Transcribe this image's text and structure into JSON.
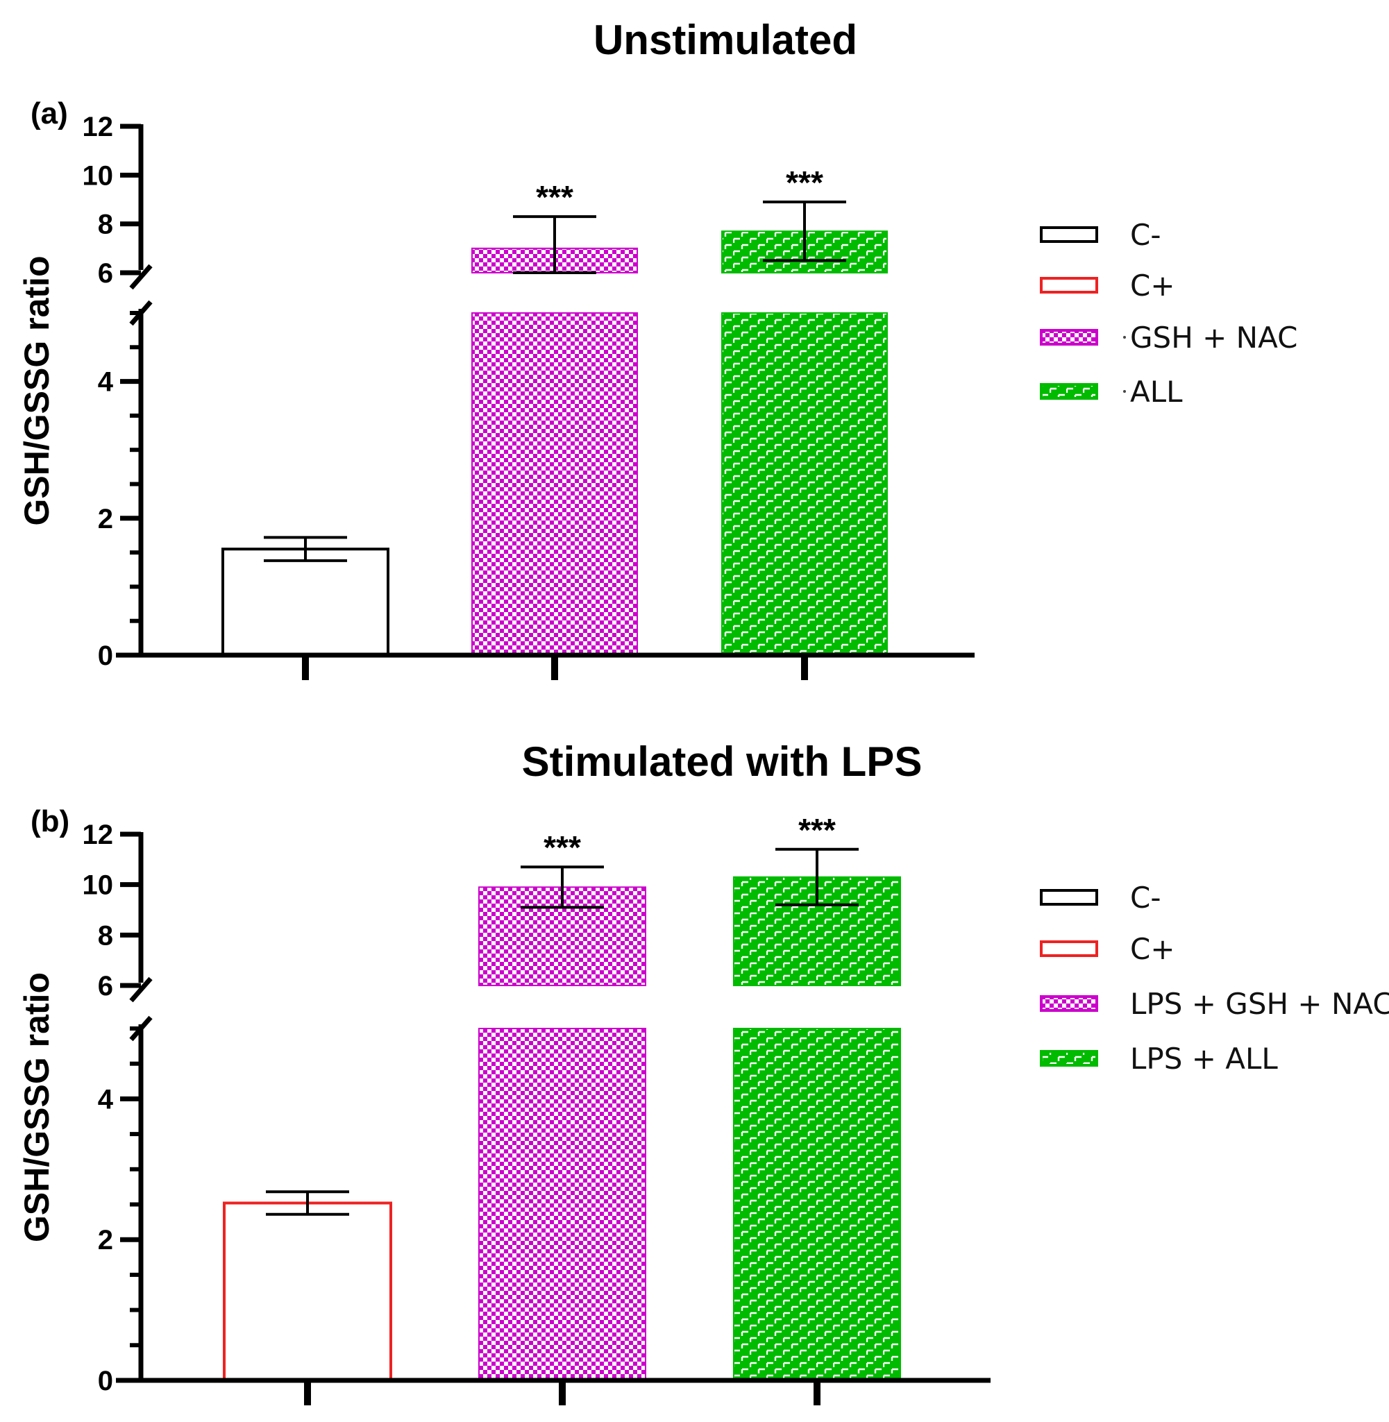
{
  "colors": {
    "c_minus": "#000000",
    "c_plus": "#ee2222",
    "gsh_nac": "#cc00cc",
    "all": "#00bb00"
  },
  "chart_data": [
    {
      "type": "bar",
      "panel_label": "(a)",
      "title": "Unstimulated",
      "ylabel": "GSH/GSSG ratio",
      "xlabel": "",
      "ylim": [
        0,
        12
      ],
      "axis_break": [
        5,
        6
      ],
      "yticks": [
        0,
        2,
        4,
        6,
        8,
        10,
        12
      ],
      "series": [
        {
          "name": "C-",
          "value": 1.55,
          "err": 0.17,
          "sig": "",
          "color_key": "c_minus",
          "pattern": "none"
        },
        {
          "name": "GSH + NAC",
          "value": 7.0,
          "err": 1.3,
          "sig": "***",
          "color_key": "gsh_nac",
          "pattern": "checker"
        },
        {
          "name": "ALL",
          "value": 7.7,
          "err": 1.2,
          "sig": "***",
          "color_key": "all",
          "pattern": "brick"
        }
      ],
      "legend": [
        {
          "label": "C-",
          "color_key": "c_minus",
          "pattern": "none",
          "dot": false
        },
        {
          "label": "C+",
          "color_key": "c_plus",
          "pattern": "none",
          "dot": false
        },
        {
          "label": "GSH + NAC",
          "color_key": "gsh_nac",
          "pattern": "checker",
          "dot": true
        },
        {
          "label": "ALL",
          "color_key": "all",
          "pattern": "brick",
          "dot": true
        }
      ]
    },
    {
      "type": "bar",
      "panel_label": "(b)",
      "title": "Stimulated with LPS",
      "ylabel": "GSH/GSSG ratio",
      "xlabel": "",
      "ylim": [
        0,
        12
      ],
      "axis_break": [
        5,
        6
      ],
      "yticks": [
        0,
        2,
        4,
        6,
        8,
        10,
        12
      ],
      "series": [
        {
          "name": "C+",
          "value": 2.52,
          "err": 0.16,
          "sig": "",
          "color_key": "c_plus",
          "pattern": "none"
        },
        {
          "name": "LPS + GSH + NAC",
          "value": 9.9,
          "err": 0.8,
          "sig": "***",
          "color_key": "gsh_nac",
          "pattern": "checker"
        },
        {
          "name": "LPS + ALL",
          "value": 10.3,
          "err": 1.1,
          "sig": "***",
          "color_key": "all",
          "pattern": "brick"
        }
      ],
      "legend": [
        {
          "label": "C-",
          "color_key": "c_minus",
          "pattern": "none",
          "dot": false
        },
        {
          "label": "C+",
          "color_key": "c_plus",
          "pattern": "none",
          "dot": false
        },
        {
          "label": "LPS + GSH + NAC",
          "color_key": "gsh_nac",
          "pattern": "checker",
          "dot": false
        },
        {
          "label": "LPS + ALL",
          "color_key": "all",
          "pattern": "brick",
          "dot": false
        }
      ]
    }
  ]
}
